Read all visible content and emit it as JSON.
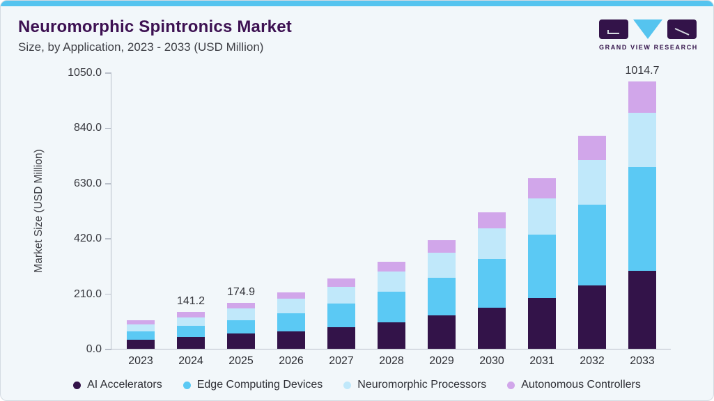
{
  "header": {
    "title": "Neuromorphic Spintronics Market",
    "subtitle": "Size, by Application, 2023 - 2033 (USD Million)"
  },
  "logo": {
    "brand": "GRAND VIEW RESEARCH"
  },
  "colors": {
    "accent_bar": "#55c4ef",
    "page_background": "#f2f7fa",
    "title_text": "#3d1152",
    "axis_line": "#b9bfc9",
    "tick_text": "#3a3b41",
    "value_label_text": "#33343a"
  },
  "chart_data": {
    "type": "bar",
    "stacked": true,
    "title": "Neuromorphic Spintronics Market Size, by Application, 2023 - 2033 (USD Million)",
    "xlabel": "",
    "ylabel": "Market Size (USD Million)",
    "ylim": [
      0,
      1050
    ],
    "yticks": [
      "0.0",
      "210.0",
      "420.0",
      "630.0",
      "840.0",
      "1050.0"
    ],
    "grid": false,
    "legend_position": "bottom",
    "categories": [
      "2023",
      "2024",
      "2025",
      "2026",
      "2027",
      "2028",
      "2029",
      "2030",
      "2031",
      "2032",
      "2033"
    ],
    "series": [
      {
        "name": "AI Accelerators",
        "color": "#331349",
        "values": [
          35.2,
          46.1,
          57.0,
          66.5,
          83.3,
          101.5,
          127.0,
          155.0,
          194.3,
          240.4,
          296.2
        ]
      },
      {
        "name": "Edge Computing Devices",
        "color": "#5bc9f4",
        "values": [
          31.4,
          40.2,
          50.9,
          69.8,
          88.2,
          115.6,
          144.0,
          187.0,
          239.3,
          306.3,
          394.9
        ]
      },
      {
        "name": "Neuromorphic Processors",
        "color": "#c0e8fa",
        "values": [
          25.6,
          33.4,
          44.6,
          54.3,
          65.2,
          75.4,
          94.5,
          116.0,
          138.2,
          169.6,
          206.1
        ]
      },
      {
        "name": "Autonomous Controllers",
        "color": "#d1a6ea",
        "values": [
          15.6,
          21.5,
          22.4,
          24.3,
          29.7,
          39.3,
          47.0,
          61.5,
          75.1,
          93.2,
          117.5
        ]
      }
    ],
    "bar_total_labels": {
      "2024": "141.2",
      "2025": "174.9",
      "2033": "1014.7"
    }
  }
}
